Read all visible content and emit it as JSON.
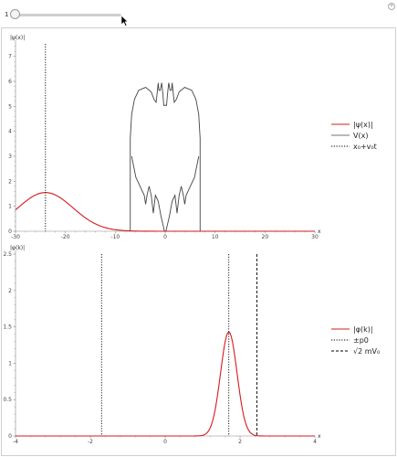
{
  "slider": {
    "value": "1"
  },
  "colors": {
    "wave": "#d71920",
    "potential": "#444444",
    "axis": "#888888"
  },
  "chart_data": [
    {
      "type": "line",
      "ylabel": "|ψ(x)|",
      "xlabel": "x",
      "xlim": [
        -30,
        30
      ],
      "ylim": [
        0,
        7.5
      ],
      "xticks": [
        -30,
        -20,
        -10,
        0,
        10,
        20,
        30
      ],
      "yticks": [
        0,
        1,
        2,
        3,
        4,
        5,
        6,
        7
      ],
      "legend": {
        "placement": "right",
        "entries": [
          {
            "label": "|ψ(x)|",
            "style": "solid-red"
          },
          {
            "label": "V(x)",
            "style": "solid-gray"
          },
          {
            "label": "x₀+v₀t",
            "style": "dotted-black"
          }
        ]
      },
      "series": [
        {
          "key": "psi",
          "gaussian": {
            "center": -24,
            "peak": 1.55,
            "sigma": 5.5
          }
        },
        {
          "key": "potential",
          "x_range": [
            -7,
            7
          ],
          "ymax": 6
        },
        {
          "key": "marker",
          "x": -24
        }
      ]
    },
    {
      "type": "line",
      "ylabel": "|φ(k)|",
      "xlabel": "x",
      "xlim": [
        -4,
        4
      ],
      "ylim": [
        0,
        2.5
      ],
      "xticks": [
        -4,
        -2,
        0,
        2,
        4
      ],
      "yticks": [
        0,
        0.5,
        1.0,
        1.5,
        2.0,
        2.5
      ],
      "legend": {
        "placement": "right",
        "entries": [
          {
            "label": "|φ(k)|",
            "style": "solid-red"
          },
          {
            "label": "±p0",
            "style": "dotted-black"
          },
          {
            "label": "√2 mV₀",
            "style": "dashed-black"
          }
        ]
      },
      "series": [
        {
          "key": "phi",
          "gaussian": {
            "center": 1.7,
            "peak": 1.43,
            "sigma": 0.22
          }
        },
        {
          "key": "pm_p0",
          "x": [
            -1.7,
            1.7
          ]
        },
        {
          "key": "sqrt2mV0",
          "x": [
            2.45
          ]
        }
      ]
    }
  ]
}
